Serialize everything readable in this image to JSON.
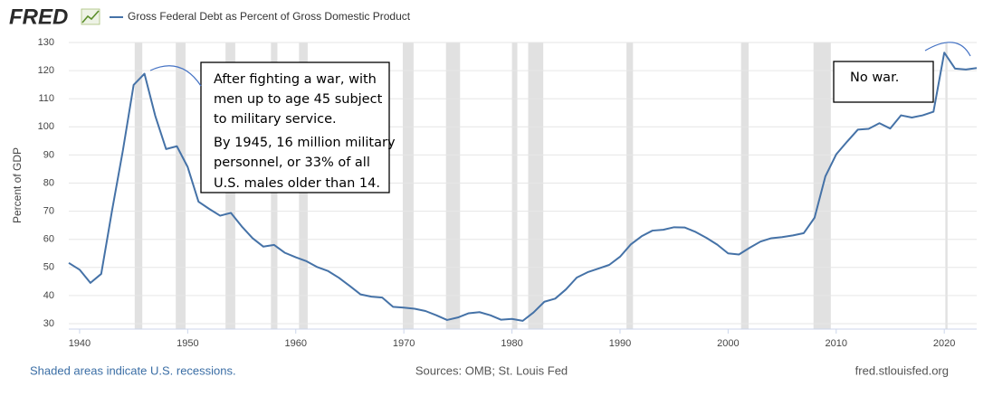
{
  "chart_data": {
    "type": "line",
    "logo": "FRED",
    "y_label": "Percent of GDP",
    "footer_left": "Shaded areas indicate U.S. recessions.",
    "footer_center": "Sources: OMB; St. Louis Fed",
    "footer_right": "fred.stlouisfed.org",
    "x": [
      1939,
      1940,
      1941,
      1942,
      1943,
      1944,
      1945,
      1946,
      1947,
      1948,
      1949,
      1950,
      1951,
      1952,
      1953,
      1954,
      1955,
      1956,
      1957,
      1958,
      1959,
      1960,
      1961,
      1962,
      1963,
      1964,
      1965,
      1966,
      1967,
      1968,
      1969,
      1970,
      1971,
      1972,
      1973,
      1974,
      1975,
      1976,
      1977,
      1978,
      1979,
      1980,
      1981,
      1982,
      1983,
      1984,
      1985,
      1986,
      1987,
      1988,
      1989,
      1990,
      1991,
      1992,
      1993,
      1994,
      1995,
      1996,
      1997,
      1998,
      1999,
      2000,
      2001,
      2002,
      2003,
      2004,
      2005,
      2006,
      2007,
      2008,
      2009,
      2010,
      2011,
      2012,
      2013,
      2014,
      2015,
      2016,
      2017,
      2018,
      2019,
      2020,
      2021,
      2022,
      2023
    ],
    "series": [
      {
        "name": "Gross Federal Debt as Percent of Gross Domestic Product",
        "color": "#4572a7",
        "values": [
          51.6,
          49.2,
          44.5,
          47.7,
          70.2,
          91.5,
          114.9,
          118.9,
          103.9,
          92.1,
          93.1,
          85.7,
          73.4,
          70.8,
          68.4,
          69.4,
          64.6,
          60.4,
          57.4,
          58.0,
          55.2,
          53.6,
          52.2,
          50.1,
          48.7,
          46.3,
          43.4,
          40.4,
          39.6,
          39.3,
          36.0,
          35.7,
          35.3,
          34.5,
          33.0,
          31.3,
          32.2,
          33.7,
          34.1,
          33.0,
          31.4,
          31.7,
          31.0,
          34.0,
          37.8,
          38.9,
          42.2,
          46.4,
          48.3,
          49.6,
          50.9,
          53.8,
          58.2,
          61.1,
          63.1,
          63.4,
          64.3,
          64.2,
          62.6,
          60.5,
          58.1,
          55.0,
          54.6,
          57.0,
          59.2,
          60.4,
          60.8,
          61.4,
          62.2,
          67.7,
          82.4,
          90.2,
          94.7,
          99.0,
          99.3,
          101.3,
          99.4,
          104.1,
          103.3,
          104.1,
          105.4,
          126.4,
          120.7,
          120.4,
          120.9
        ]
      }
    ],
    "recessions": [
      [
        1945.1,
        1945.8
      ],
      [
        1948.9,
        1949.8
      ],
      [
        1953.5,
        1954.4
      ],
      [
        1957.7,
        1958.3
      ],
      [
        1960.3,
        1961.1
      ],
      [
        1969.9,
        1970.9
      ],
      [
        1973.9,
        1975.2
      ],
      [
        1980.0,
        1980.5
      ],
      [
        1981.5,
        1982.9
      ],
      [
        1990.6,
        1991.2
      ],
      [
        2001.2,
        2001.9
      ],
      [
        2007.9,
        2009.5
      ],
      [
        2020.1,
        2020.3
      ]
    ],
    "recession_color": "#e1e1e1",
    "xlim": [
      1939,
      2023
    ],
    "ylim": [
      30,
      130
    ],
    "xticks": [
      1940,
      1950,
      1960,
      1970,
      1980,
      1990,
      2000,
      2010,
      2020
    ],
    "yticks": [
      30,
      40,
      50,
      60,
      70,
      80,
      90,
      100,
      110,
      120,
      130
    ],
    "grid": true,
    "annotations": [
      {
        "lines": [
          "After fighting a war, with",
          "men up to age 45 subject",
          "to military service.",
          "By 1945, 16 million military",
          "personnel, or 33% of all",
          "U.S. males older than 14."
        ]
      },
      {
        "lines": [
          "No war."
        ]
      }
    ]
  }
}
